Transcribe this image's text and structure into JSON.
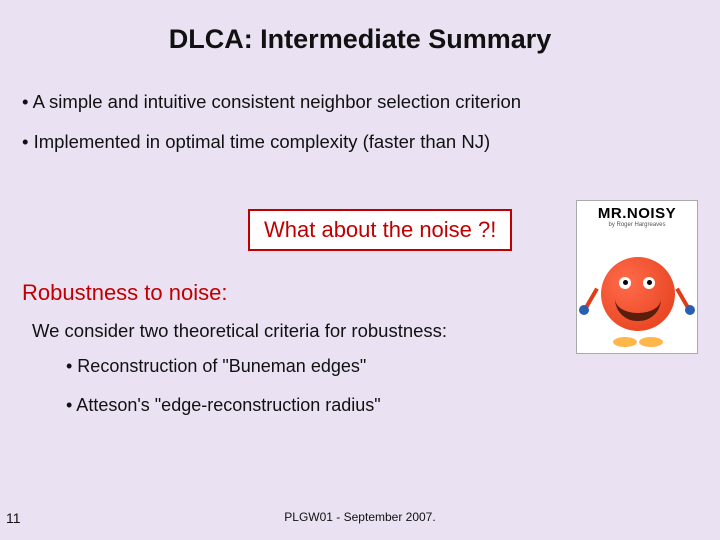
{
  "title": "DLCA: Intermediate Summary",
  "bullets": [
    "• A simple and intuitive consistent neighbor selection criterion",
    "• Implemented in optimal time complexity (faster than NJ)"
  ],
  "callout": "What about the noise ?!",
  "robust": {
    "heading": "Robustness to noise:",
    "sub": "We consider two theoretical criteria for robustness:",
    "items": [
      "• Reconstruction of \"Buneman edges\"",
      "• Atteson's \"edge-reconstruction radius\""
    ]
  },
  "image": {
    "title": "MR.NOISY",
    "author": "by Roger Hargreaves"
  },
  "page_number": "11",
  "footer": "PLGW01 - September 2007.",
  "colors": {
    "background": "#eae2f2",
    "accent": "#c00000",
    "callout_border": "#c00000"
  }
}
